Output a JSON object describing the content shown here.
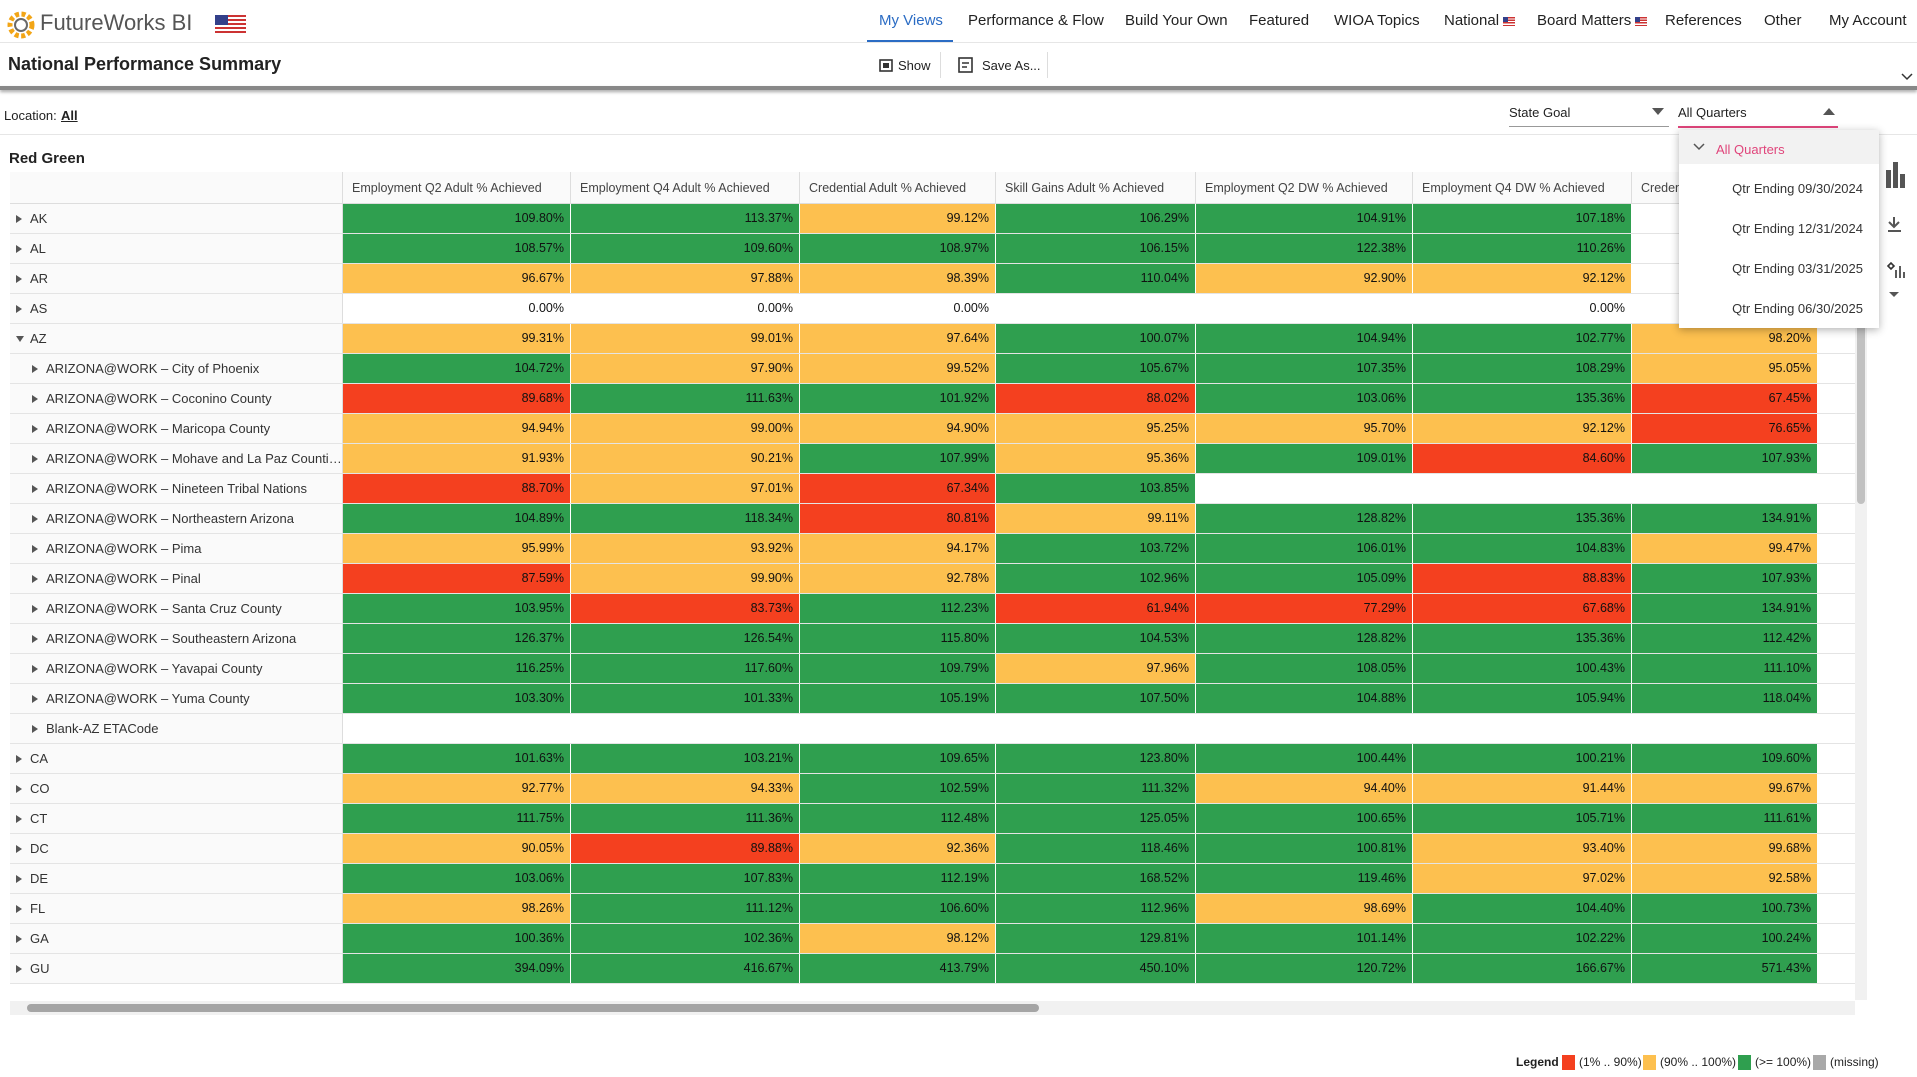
{
  "header": {
    "brand": "FutureWorks BI",
    "nav": [
      "My Views",
      "Performance & Flow",
      "Build Your Own",
      "Featured",
      "WIOA Topics",
      "National",
      "Board Matters",
      "References",
      "Other",
      "My Account"
    ],
    "page_title": "National Performance Summary",
    "toolbar": [
      "Show",
      "Save As..."
    ]
  },
  "filters": {
    "location_label": "Location:",
    "location_value": "All",
    "goal": "State Goal",
    "quarter": "All Quarters",
    "quarter_options": [
      "All Quarters",
      "Qtr Ending 09/30/2024",
      "Qtr Ending 12/31/2024",
      "Qtr Ending 03/31/2025",
      "Qtr Ending 06/30/2025"
    ]
  },
  "table": {
    "title": "Red Green",
    "columns": [
      "Employment Q2 Adult % Achieved",
      "Employment Q4 Adult % Achieved",
      "Credential Adult % Achieved",
      "Skill Gains Adult % Achieved",
      "Employment Q2 DW % Achieved",
      "Employment Q4 DW % Achieved",
      "Credential DW % Achieved"
    ],
    "rows": [
      {
        "label": "AK",
        "cells": [
          "109.80%",
          "113.37%",
          "99.12%",
          "106.29%",
          "104.91%",
          "107.18%",
          null
        ]
      },
      {
        "label": "AL",
        "cells": [
          "108.57%",
          "109.60%",
          "108.97%",
          "106.15%",
          "122.38%",
          "110.26%",
          null
        ]
      },
      {
        "label": "AR",
        "cells": [
          "96.67%",
          "97.88%",
          "98.39%",
          "110.04%",
          "92.90%",
          "92.12%",
          null
        ]
      },
      {
        "label": "AS",
        "cells": [
          "0.00%",
          "0.00%",
          "0.00%",
          null,
          null,
          "0.00%",
          null
        ]
      },
      {
        "label": "AZ",
        "expanded": true,
        "cells": [
          "99.31%",
          "99.01%",
          "97.64%",
          "100.07%",
          "104.94%",
          "102.77%",
          "98.20%"
        ],
        "children": [
          {
            "label": "ARIZONA@WORK – City of Phoenix",
            "cells": [
              "104.72%",
              "97.90%",
              "99.52%",
              "105.67%",
              "107.35%",
              "108.29%",
              "95.05%"
            ]
          },
          {
            "label": "ARIZONA@WORK – Coconino County",
            "cells": [
              "89.68%",
              "111.63%",
              "101.92%",
              "88.02%",
              "103.06%",
              "135.36%",
              "67.45%"
            ]
          },
          {
            "label": "ARIZONA@WORK – Maricopa County",
            "cells": [
              "94.94%",
              "99.00%",
              "94.90%",
              "95.25%",
              "95.70%",
              "92.12%",
              "76.65%"
            ]
          },
          {
            "label": "ARIZONA@WORK – Mohave and La Paz Counties",
            "cells": [
              "91.93%",
              "90.21%",
              "107.99%",
              "95.36%",
              "109.01%",
              "84.60%",
              "107.93%"
            ]
          },
          {
            "label": "ARIZONA@WORK – Nineteen Tribal Nations",
            "cells": [
              "88.70%",
              "97.01%",
              "67.34%",
              "103.85%",
              null,
              null,
              null
            ]
          },
          {
            "label": "ARIZONA@WORK – Northeastern Arizona",
            "cells": [
              "104.89%",
              "118.34%",
              "80.81%",
              "99.11%",
              "128.82%",
              "135.36%",
              "134.91%"
            ]
          },
          {
            "label": "ARIZONA@WORK – Pima",
            "cells": [
              "95.99%",
              "93.92%",
              "94.17%",
              "103.72%",
              "106.01%",
              "104.83%",
              "99.47%"
            ]
          },
          {
            "label": "ARIZONA@WORK – Pinal",
            "cells": [
              "87.59%",
              "99.90%",
              "92.78%",
              "102.96%",
              "105.09%",
              "88.83%",
              "107.93%"
            ]
          },
          {
            "label": "ARIZONA@WORK – Santa Cruz County",
            "cells": [
              "103.95%",
              "83.73%",
              "112.23%",
              "61.94%",
              "77.29%",
              "67.68%",
              "134.91%"
            ]
          },
          {
            "label": "ARIZONA@WORK – Southeastern Arizona",
            "cells": [
              "126.37%",
              "126.54%",
              "115.80%",
              "104.53%",
              "128.82%",
              "135.36%",
              "112.42%"
            ]
          },
          {
            "label": "ARIZONA@WORK – Yavapai County",
            "cells": [
              "116.25%",
              "117.60%",
              "109.79%",
              "97.96%",
              "108.05%",
              "100.43%",
              "111.10%"
            ]
          },
          {
            "label": "ARIZONA@WORK – Yuma County",
            "cells": [
              "103.30%",
              "101.33%",
              "105.19%",
              "107.50%",
              "104.88%",
              "105.94%",
              "118.04%"
            ]
          },
          {
            "label": "Blank-AZ ETACode",
            "cells": [
              null,
              null,
              null,
              null,
              null,
              null,
              null
            ]
          }
        ]
      },
      {
        "label": "CA",
        "cells": [
          "101.63%",
          "103.21%",
          "109.65%",
          "123.80%",
          "100.44%",
          "100.21%",
          "109.60%"
        ]
      },
      {
        "label": "CO",
        "cells": [
          "92.77%",
          "94.33%",
          "102.59%",
          "111.32%",
          "94.40%",
          "91.44%",
          "99.67%"
        ]
      },
      {
        "label": "CT",
        "cells": [
          "111.75%",
          "111.36%",
          "112.48%",
          "125.05%",
          "100.65%",
          "105.71%",
          "111.61%"
        ]
      },
      {
        "label": "DC",
        "cells": [
          "90.05%",
          "89.88%",
          "92.36%",
          "118.46%",
          "100.81%",
          "93.40%",
          "99.68%"
        ]
      },
      {
        "label": "DE",
        "cells": [
          "103.06%",
          "107.83%",
          "112.19%",
          "168.52%",
          "119.46%",
          "97.02%",
          "92.58%"
        ]
      },
      {
        "label": "FL",
        "cells": [
          "98.26%",
          "111.12%",
          "106.60%",
          "112.96%",
          "98.69%",
          "104.40%",
          "100.73%"
        ]
      },
      {
        "label": "GA",
        "cells": [
          "100.36%",
          "102.36%",
          "98.12%",
          "129.81%",
          "101.14%",
          "102.22%",
          "100.24%"
        ]
      },
      {
        "label": "GU",
        "cells": [
          "394.09%",
          "416.67%",
          "413.79%",
          "450.10%",
          "120.72%",
          "166.67%",
          "571.43%"
        ]
      }
    ]
  },
  "legend": {
    "title": "Legend",
    "items": [
      {
        "label": "(1% .. 90%)",
        "color": "#f4401f",
        "from": 1,
        "to": 90
      },
      {
        "label": "(90% .. 100%)",
        "color": "#fdc04f",
        "from": 90,
        "to": 100
      },
      {
        "label": "(>= 100%)",
        "color": "#2f9f4f",
        "from": 100
      },
      {
        "label": "(missing)",
        "color": "#a9a9a9"
      }
    ]
  }
}
